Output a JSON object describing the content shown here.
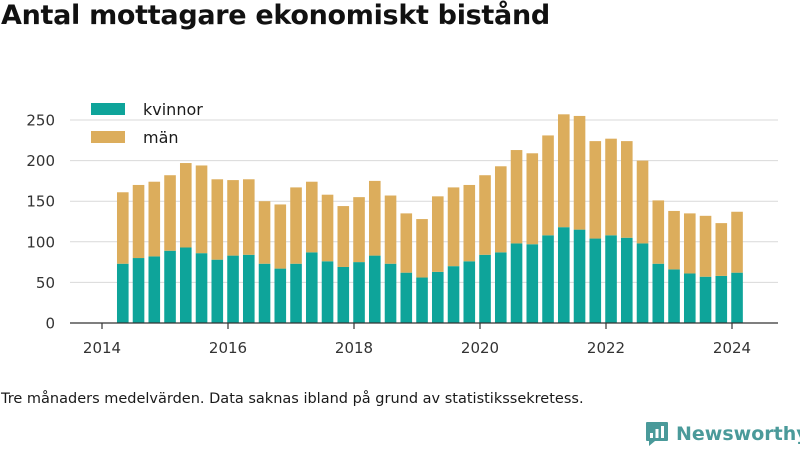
{
  "title": "Antal mottagare ekonomiskt bistånd",
  "footnote": "Tre månaders medelvärden. Data saknas ibland på grund av statistikssekretess.",
  "brand": {
    "name": "Newsworthy",
    "icon": "bar-chart-logo-icon"
  },
  "colors": {
    "kvinnor": "#0ea49a",
    "man": "#dcad5c",
    "axis": "#333333",
    "grid": "#d9d9d9"
  },
  "chart_data": {
    "type": "bar",
    "stacked": true,
    "ylim": [
      0,
      280
    ],
    "yticks": [
      0,
      50,
      100,
      150,
      200,
      250
    ],
    "xticks": [
      "2014",
      "2016",
      "2018",
      "2020",
      "2022",
      "2024"
    ],
    "xlim": [
      2014.0,
      2024.8
    ],
    "grid": true,
    "legend_position": "top-left",
    "x": [
      2014.33,
      2014.58,
      2014.83,
      2015.08,
      2015.33,
      2015.58,
      2015.83,
      2016.08,
      2016.33,
      2016.58,
      2016.83,
      2017.08,
      2017.33,
      2017.58,
      2017.83,
      2018.08,
      2018.33,
      2018.58,
      2018.83,
      2019.08,
      2019.33,
      2019.58,
      2019.83,
      2020.08,
      2020.33,
      2020.58,
      2020.83,
      2021.08,
      2021.33,
      2021.58,
      2021.83,
      2022.08,
      2022.33,
      2022.58,
      2022.83,
      2023.08,
      2023.33,
      2023.58,
      2023.83,
      2024.08
    ],
    "series": [
      {
        "name": "kvinnor",
        "values": [
          73,
          80,
          82,
          89,
          93,
          86,
          78,
          83,
          84,
          73,
          67,
          73,
          87,
          76,
          69,
          75,
          83,
          73,
          62,
          56,
          63,
          70,
          76,
          84,
          87,
          98,
          97,
          108,
          118,
          115,
          104,
          108,
          105,
          98,
          73,
          66,
          61,
          57,
          58,
          62
        ]
      },
      {
        "name": "män",
        "values": [
          88,
          90,
          92,
          93,
          104,
          108,
          99,
          93,
          93,
          77,
          79,
          94,
          87,
          82,
          75,
          80,
          92,
          84,
          73,
          72,
          93,
          97,
          94,
          98,
          106,
          115,
          112,
          123,
          139,
          140,
          120,
          119,
          119,
          102,
          78,
          72,
          74,
          75,
          65,
          75
        ]
      }
    ]
  }
}
